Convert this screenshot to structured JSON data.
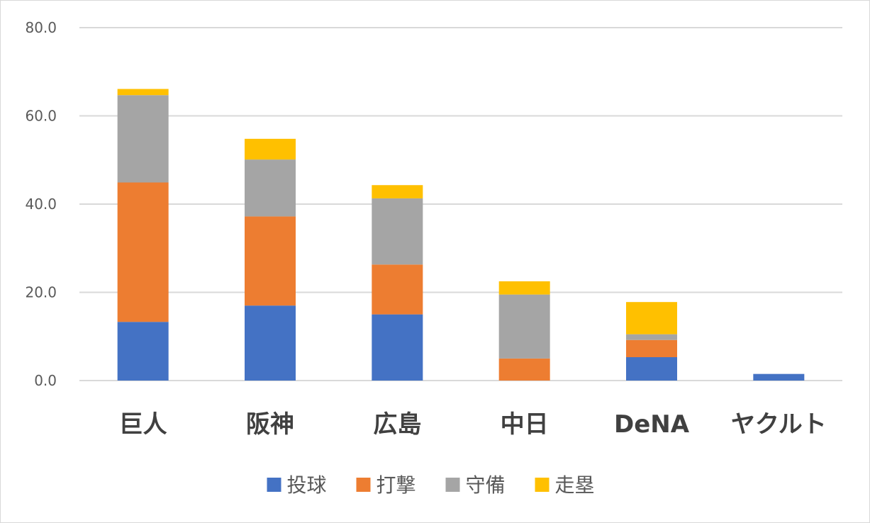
{
  "chart_data": {
    "type": "bar",
    "stacked": true,
    "categories": [
      "巨人",
      "阪神",
      "広島",
      "中日",
      "DeNA",
      "ヤクルト"
    ],
    "series": [
      {
        "name": "投球",
        "color": "#4472C4",
        "values": [
          13.3,
          17.0,
          15.0,
          0.0,
          5.3,
          1.5
        ]
      },
      {
        "name": "打撃",
        "color": "#ED7D31",
        "values": [
          31.6,
          20.2,
          11.3,
          5.0,
          3.9,
          0.0
        ]
      },
      {
        "name": "守備",
        "color": "#A5A5A5",
        "values": [
          19.8,
          12.9,
          15.0,
          14.5,
          1.3,
          0.0
        ]
      },
      {
        "name": "走塁",
        "color": "#FFC000",
        "values": [
          1.4,
          4.7,
          3.0,
          3.0,
          7.3,
          0.0
        ]
      }
    ],
    "yticks": [
      "0.0",
      "20.0",
      "40.0",
      "60.0",
      "80.0"
    ],
    "ylim": [
      0,
      80
    ],
    "grid": true,
    "legend_position": "bottom",
    "title": "",
    "xlabel": "",
    "ylabel": ""
  }
}
